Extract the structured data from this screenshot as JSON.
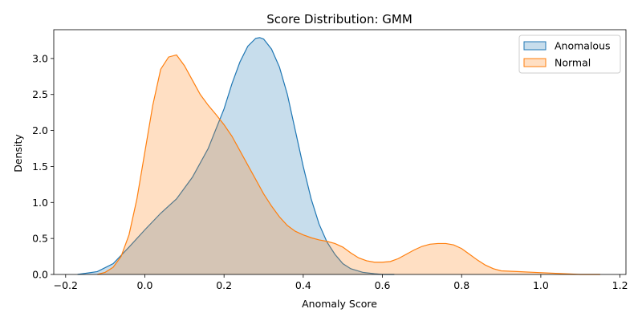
{
  "chart_data": {
    "type": "area",
    "title": "Score Distribution: GMM",
    "xlabel": "Anomaly Score",
    "ylabel": "Density",
    "xlim": [
      -0.23,
      1.215
    ],
    "ylim": [
      0,
      3.4
    ],
    "xticks": [
      -0.2,
      0.0,
      0.2,
      0.4,
      0.6,
      0.8,
      1.0,
      1.2
    ],
    "xtick_labels": [
      "−0.2",
      "0.0",
      "0.2",
      "0.4",
      "0.6",
      "0.8",
      "1.0",
      "1.2"
    ],
    "yticks": [
      0.0,
      0.5,
      1.0,
      1.5,
      2.0,
      2.5,
      3.0
    ],
    "ytick_labels": [
      "0.0",
      "0.5",
      "1.0",
      "1.5",
      "2.0",
      "2.5",
      "3.0"
    ],
    "grid": false,
    "legend_position": "top-right",
    "series": [
      {
        "name": "Anomalous",
        "color": "#1f77b4",
        "fill_opacity": 0.25,
        "x": [
          -0.17,
          -0.12,
          -0.08,
          -0.04,
          0.0,
          0.04,
          0.08,
          0.12,
          0.16,
          0.2,
          0.22,
          0.24,
          0.26,
          0.28,
          0.29,
          0.3,
          0.32,
          0.34,
          0.36,
          0.38,
          0.4,
          0.42,
          0.44,
          0.46,
          0.48,
          0.5,
          0.52,
          0.55,
          0.58,
          0.6,
          0.63
        ],
        "y": [
          0.0,
          0.04,
          0.15,
          0.38,
          0.62,
          0.85,
          1.05,
          1.35,
          1.75,
          2.3,
          2.65,
          2.95,
          3.17,
          3.28,
          3.29,
          3.27,
          3.13,
          2.88,
          2.5,
          2.0,
          1.5,
          1.05,
          0.7,
          0.45,
          0.28,
          0.15,
          0.08,
          0.03,
          0.01,
          0.0,
          0.0
        ]
      },
      {
        "name": "Normal",
        "color": "#ff7f0e",
        "fill_opacity": 0.25,
        "x": [
          -0.12,
          -0.1,
          -0.08,
          -0.06,
          -0.04,
          -0.02,
          0.0,
          0.02,
          0.04,
          0.06,
          0.08,
          0.1,
          0.12,
          0.14,
          0.16,
          0.18,
          0.2,
          0.22,
          0.24,
          0.26,
          0.28,
          0.3,
          0.32,
          0.34,
          0.36,
          0.38,
          0.4,
          0.42,
          0.44,
          0.46,
          0.48,
          0.5,
          0.52,
          0.54,
          0.56,
          0.58,
          0.6,
          0.62,
          0.64,
          0.66,
          0.68,
          0.7,
          0.72,
          0.74,
          0.76,
          0.78,
          0.8,
          0.82,
          0.84,
          0.86,
          0.88,
          0.9,
          0.94,
          0.98,
          1.02,
          1.06,
          1.1,
          1.15
        ],
        "y": [
          0.0,
          0.03,
          0.1,
          0.25,
          0.55,
          1.05,
          1.7,
          2.35,
          2.85,
          3.02,
          3.05,
          2.9,
          2.7,
          2.5,
          2.35,
          2.22,
          2.08,
          1.92,
          1.72,
          1.52,
          1.32,
          1.12,
          0.95,
          0.8,
          0.68,
          0.6,
          0.55,
          0.51,
          0.48,
          0.46,
          0.43,
          0.38,
          0.3,
          0.23,
          0.19,
          0.17,
          0.17,
          0.18,
          0.22,
          0.28,
          0.34,
          0.39,
          0.42,
          0.43,
          0.43,
          0.41,
          0.36,
          0.28,
          0.2,
          0.13,
          0.08,
          0.05,
          0.04,
          0.03,
          0.02,
          0.01,
          0.0,
          0.0
        ]
      }
    ]
  }
}
